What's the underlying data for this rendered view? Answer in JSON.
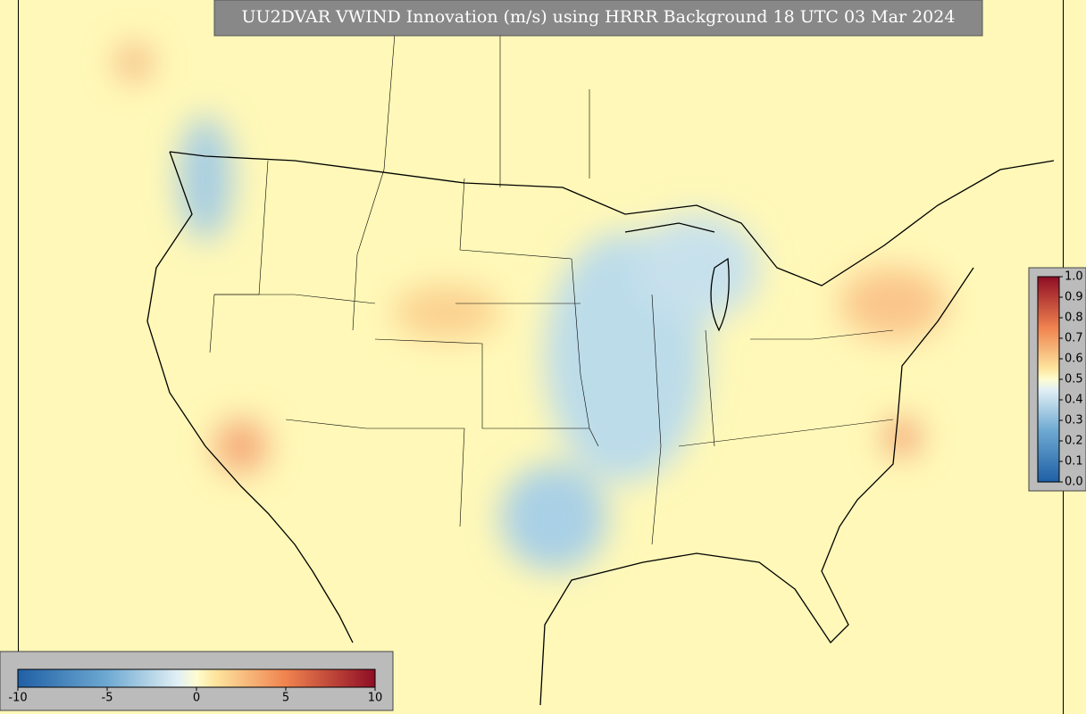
{
  "title": "UU2DVAR VWIND Innovation (m/s) using HRRR Background 18 UTC 03 Mar 2024",
  "colorbars": [
    {
      "ticks": [
        -10,
        -5,
        0,
        5,
        10
      ]
    },
    {
      "ticks": [
        {
          "value": 0,
          "label": "0.0"
        },
        0.1,
        0.2,
        0.3,
        0.4,
        0.5,
        0.6,
        0.7,
        0.8,
        0.9,
        {
          "value": 1,
          "label": "1.0"
        }
      ]
    }
  ]
}
